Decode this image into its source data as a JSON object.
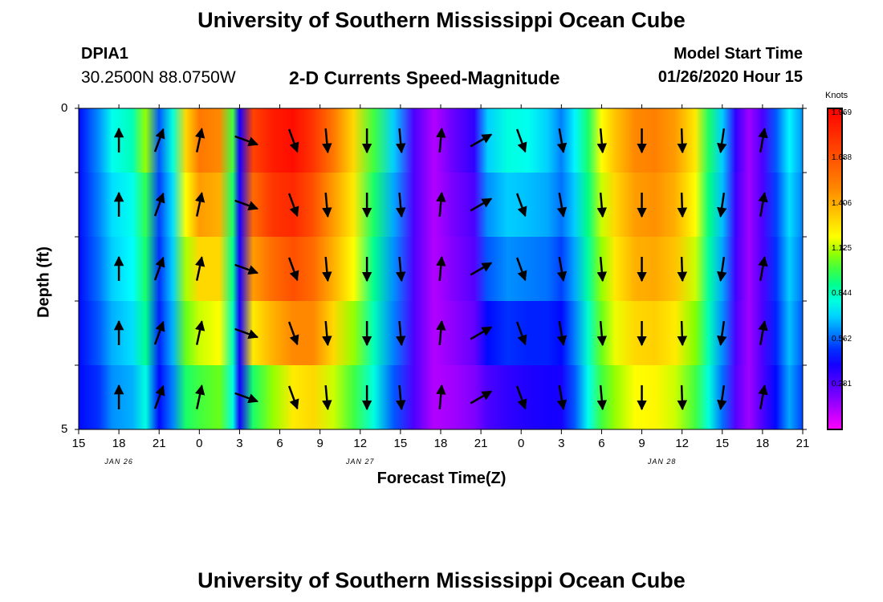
{
  "header": {
    "title": "University of Southern Mississippi Ocean Cube",
    "station": "DPIA1",
    "coordinates": "30.2500N 88.0750W",
    "subtitle": "2-D Currents Speed-Magnitude",
    "model_start_label": "Model Start Time",
    "model_start_value": "01/26/2020 Hour 15"
  },
  "footer": {
    "title": "University of Southern Mississippi Ocean Cube"
  },
  "chart_data": {
    "type": "heatmap",
    "title": "2-D Currents Speed-Magnitude",
    "xlabel": "Forecast Time(Z)",
    "ylabel": "Depth (ft)",
    "x_start_hour": 15,
    "x_end_hour": 69,
    "x_tick_labels": [
      "15",
      "18",
      "21",
      "0",
      "3",
      "6",
      "9",
      "12",
      "15",
      "18",
      "21",
      "0",
      "3",
      "6",
      "9",
      "12",
      "15",
      "18",
      "21"
    ],
    "x_date_labels": [
      {
        "label": "JAN 26",
        "hour": 18
      },
      {
        "label": "JAN 27",
        "hour": 36
      },
      {
        "label": "JAN 28",
        "hour": 58.5
      }
    ],
    "y_tick_labels": [
      "0",
      "5"
    ],
    "ylim": [
      0,
      5
    ],
    "depth_layers": [
      0.5,
      1.5,
      2.5,
      3.5,
      4.5
    ],
    "colorbar": {
      "unit": "Knots",
      "ticks": [
        "1.969",
        "1.688",
        "1.406",
        "1.125",
        "0.844",
        "0.562",
        "0.281"
      ],
      "tick_values": [
        1.969,
        1.688,
        1.406,
        1.125,
        0.844,
        0.562,
        0.281
      ],
      "range": [
        0,
        2.0
      ]
    },
    "speed_columns": [
      {
        "hour": 15.0,
        "speeds": [
          0.45,
          0.45,
          0.45,
          0.45,
          0.45
        ]
      },
      {
        "hour": 16.5,
        "speeds": [
          0.62,
          0.6,
          0.58,
          0.55,
          0.5
        ]
      },
      {
        "hour": 17.5,
        "speeds": [
          0.78,
          0.72,
          0.7,
          0.66,
          0.62
        ]
      },
      {
        "hour": 19.0,
        "speeds": [
          0.85,
          0.78,
          0.76,
          0.72,
          0.66
        ]
      },
      {
        "hour": 20.0,
        "speeds": [
          1.1,
          0.98,
          0.95,
          0.9,
          0.8
        ]
      },
      {
        "hour": 21.0,
        "speeds": [
          0.55,
          0.52,
          0.5,
          0.48,
          0.45
        ]
      },
      {
        "hour": 22.0,
        "speeds": [
          0.8,
          0.72,
          0.7,
          0.66,
          0.6
        ]
      },
      {
        "hour": 23.0,
        "speeds": [
          1.3,
          1.2,
          1.12,
          1.05,
          0.95
        ]
      },
      {
        "hour": 24.0,
        "speeds": [
          1.55,
          1.45,
          1.3,
          1.15,
          1.0
        ]
      },
      {
        "hour": 25.5,
        "speeds": [
          1.5,
          1.4,
          1.3,
          1.2,
          1.05
        ]
      },
      {
        "hour": 26.5,
        "speeds": [
          1.0,
          0.95,
          0.9,
          0.85,
          0.8
        ]
      },
      {
        "hour": 27.0,
        "speeds": [
          0.4,
          0.4,
          0.4,
          0.4,
          0.4
        ]
      },
      {
        "hour": 28.0,
        "speeds": [
          1.75,
          1.6,
          1.45,
          1.25,
          0.95
        ]
      },
      {
        "hour": 29.5,
        "speeds": [
          1.9,
          1.8,
          1.6,
          1.4,
          1.1
        ]
      },
      {
        "hour": 31.0,
        "speeds": [
          1.95,
          1.85,
          1.7,
          1.5,
          1.25
        ]
      },
      {
        "hour": 32.5,
        "speeds": [
          1.8,
          1.7,
          1.6,
          1.5,
          1.3
        ]
      },
      {
        "hour": 34.0,
        "speeds": [
          1.55,
          1.45,
          1.4,
          1.3,
          1.15
        ]
      },
      {
        "hour": 35.5,
        "speeds": [
          1.3,
          1.25,
          1.2,
          1.1,
          1.0
        ]
      },
      {
        "hour": 37.0,
        "speeds": [
          1.0,
          0.95,
          0.9,
          0.85,
          0.8
        ]
      },
      {
        "hour": 38.5,
        "speeds": [
          0.7,
          0.65,
          0.62,
          0.6,
          0.55
        ]
      },
      {
        "hour": 40.0,
        "speeds": [
          0.3,
          0.3,
          0.3,
          0.3,
          0.3
        ]
      },
      {
        "hour": 41.5,
        "speeds": [
          0.12,
          0.12,
          0.12,
          0.12,
          0.12
        ]
      },
      {
        "hour": 43.0,
        "speeds": [
          0.25,
          0.22,
          0.2,
          0.18,
          0.15
        ]
      },
      {
        "hour": 44.5,
        "speeds": [
          0.35,
          0.3,
          0.28,
          0.25,
          0.2
        ]
      },
      {
        "hour": 45.5,
        "speeds": [
          0.7,
          0.62,
          0.55,
          0.45,
          0.3
        ]
      },
      {
        "hour": 47.0,
        "speeds": [
          0.8,
          0.7,
          0.62,
          0.5,
          0.35
        ]
      },
      {
        "hour": 48.5,
        "speeds": [
          0.78,
          0.68,
          0.6,
          0.48,
          0.38
        ]
      },
      {
        "hour": 50.0,
        "speeds": [
          0.7,
          0.65,
          0.58,
          0.48,
          0.4
        ]
      },
      {
        "hour": 51.0,
        "speeds": [
          0.6,
          0.58,
          0.52,
          0.45,
          0.4
        ]
      },
      {
        "hour": 52.0,
        "speeds": [
          0.75,
          0.7,
          0.65,
          0.6,
          0.55
        ]
      },
      {
        "hour": 53.0,
        "speeds": [
          0.95,
          0.92,
          0.88,
          0.82,
          0.78
        ]
      },
      {
        "hour": 54.0,
        "speeds": [
          1.2,
          1.15,
          1.1,
          1.05,
          1.0
        ]
      },
      {
        "hour": 55.0,
        "speeds": [
          1.35,
          1.3,
          1.25,
          1.18,
          1.1
        ]
      },
      {
        "hour": 56.5,
        "speeds": [
          1.5,
          1.45,
          1.4,
          1.3,
          1.2
        ]
      },
      {
        "hour": 58.0,
        "speeds": [
          1.52,
          1.48,
          1.42,
          1.32,
          1.22
        ]
      },
      {
        "hour": 59.5,
        "speeds": [
          1.45,
          1.4,
          1.35,
          1.25,
          1.15
        ]
      },
      {
        "hour": 61.0,
        "speeds": [
          1.25,
          1.2,
          1.15,
          1.08,
          1.0
        ]
      },
      {
        "hour": 62.0,
        "speeds": [
          0.95,
          0.92,
          0.88,
          0.85,
          0.8
        ]
      },
      {
        "hour": 63.0,
        "speeds": [
          0.7,
          0.68,
          0.65,
          0.62,
          0.58
        ]
      },
      {
        "hour": 64.0,
        "speeds": [
          0.35,
          0.33,
          0.32,
          0.3,
          0.28
        ]
      },
      {
        "hour": 65.0,
        "speeds": [
          0.15,
          0.15,
          0.15,
          0.15,
          0.15
        ]
      },
      {
        "hour": 66.0,
        "speeds": [
          0.3,
          0.3,
          0.3,
          0.3,
          0.3
        ]
      },
      {
        "hour": 67.0,
        "speeds": [
          0.55,
          0.52,
          0.5,
          0.48,
          0.45
        ]
      },
      {
        "hour": 68.0,
        "speeds": [
          0.75,
          0.72,
          0.7,
          0.68,
          0.65
        ]
      },
      {
        "hour": 69.0,
        "speeds": [
          0.62,
          0.6,
          0.58,
          0.55,
          0.52
        ]
      }
    ],
    "vector_columns": [
      {
        "hour": 18,
        "direction_deg": 0
      },
      {
        "hour": 21,
        "direction_deg": 20
      },
      {
        "hour": 24,
        "direction_deg": 12
      },
      {
        "hour": 27.5,
        "direction_deg": 110
      },
      {
        "hour": 31,
        "direction_deg": 160
      },
      {
        "hour": 33.5,
        "direction_deg": 175
      },
      {
        "hour": 36.5,
        "direction_deg": 180
      },
      {
        "hour": 39,
        "direction_deg": 175
      },
      {
        "hour": 42,
        "direction_deg": 5
      },
      {
        "hour": 45,
        "direction_deg": 60
      },
      {
        "hour": 48,
        "direction_deg": 160
      },
      {
        "hour": 51,
        "direction_deg": 170
      },
      {
        "hour": 54,
        "direction_deg": 175
      },
      {
        "hour": 57,
        "direction_deg": 180
      },
      {
        "hour": 60,
        "direction_deg": 178
      },
      {
        "hour": 63,
        "direction_deg": 188
      },
      {
        "hour": 66,
        "direction_deg": 10
      }
    ]
  }
}
